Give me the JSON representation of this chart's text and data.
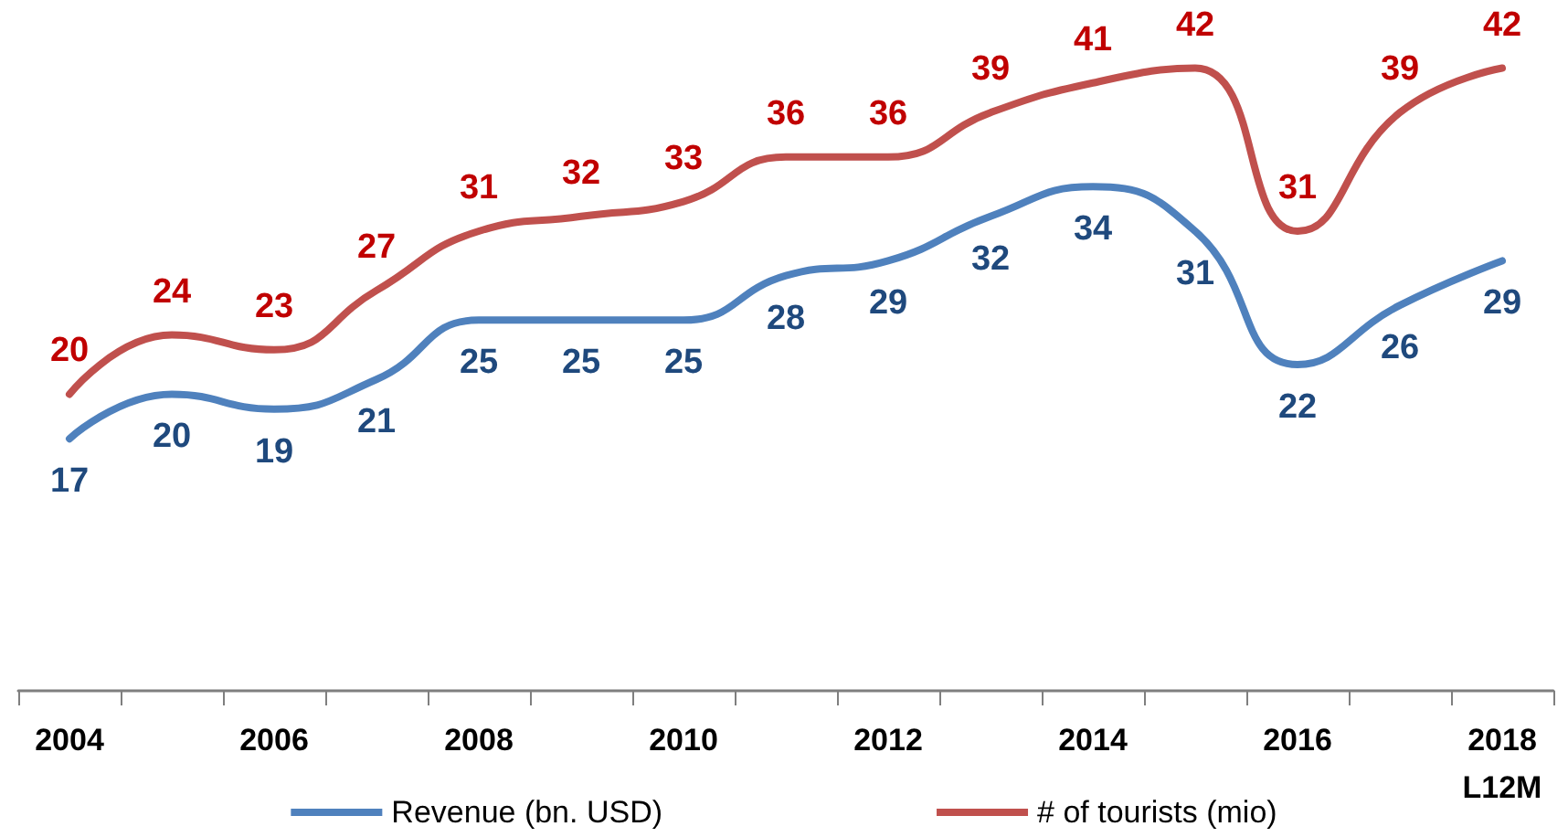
{
  "chart_data": {
    "type": "line",
    "categories": [
      "2004",
      null,
      "2006",
      null,
      "2008",
      null,
      "2010",
      null,
      "2012",
      null,
      "2014",
      null,
      "2016",
      null,
      "2018\nL12M"
    ],
    "series": [
      {
        "name": "Revenue (bn. USD)",
        "color": "#4f81bd",
        "values": [
          17,
          20,
          19,
          21,
          25,
          25,
          25,
          28,
          29,
          32,
          34,
          31,
          22,
          26,
          29
        ]
      },
      {
        "name": "# of tourists (mio)",
        "color": "#c0504d",
        "values": [
          20,
          24,
          23,
          27,
          31,
          32,
          33,
          36,
          36,
          39,
          41,
          42,
          31,
          39,
          42
        ]
      }
    ],
    "data_labels": true,
    "marker": "none",
    "line_style": "solid",
    "grid": false,
    "legend": "bottom",
    "tick_labels": "x"
  }
}
